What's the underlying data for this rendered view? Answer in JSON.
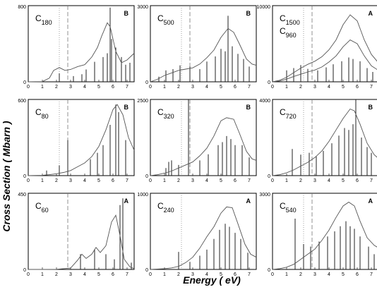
{
  "figure": {
    "ylabel": "Cross Section ( Mbarn )",
    "xlabel": "Energy ( eV)"
  },
  "chart_data": [
    {
      "type": "line",
      "molecule": "C",
      "subscript": "180",
      "subscript2": "",
      "subscript_label2": "",
      "tag": "B",
      "xlim": [
        0,
        7.5
      ],
      "ylim": [
        0,
        800
      ],
      "ytick_labels": [
        "0",
        "800"
      ],
      "xtick_labels": [
        "0",
        "1",
        "2",
        "3",
        "4",
        "5",
        "6",
        "7"
      ],
      "dotted_x": 2.2,
      "dashed_x": 2.8,
      "envelope": [
        [
          0,
          0
        ],
        [
          1,
          2
        ],
        [
          1.5,
          40
        ],
        [
          1.8,
          120
        ],
        [
          2.2,
          150
        ],
        [
          2.6,
          120
        ],
        [
          3.0,
          130
        ],
        [
          3.5,
          160
        ],
        [
          4.0,
          180
        ],
        [
          4.5,
          260
        ],
        [
          4.9,
          360
        ],
        [
          5.2,
          480
        ],
        [
          5.6,
          620
        ],
        [
          5.8,
          580
        ],
        [
          6.2,
          320
        ],
        [
          6.6,
          200
        ],
        [
          7.0,
          230
        ],
        [
          7.5,
          300
        ]
      ],
      "peaks": [
        [
          2.2,
          90
        ],
        [
          3.2,
          60
        ],
        [
          3.8,
          80
        ],
        [
          4.1,
          130
        ],
        [
          4.7,
          210
        ],
        [
          5.3,
          260
        ],
        [
          5.6,
          300
        ],
        [
          5.8,
          780
        ],
        [
          5.9,
          450
        ],
        [
          6.2,
          360
        ],
        [
          6.6,
          260
        ],
        [
          6.9,
          180
        ],
        [
          7.2,
          200
        ]
      ]
    },
    {
      "type": "line",
      "molecule": "C",
      "subscript": "500",
      "subscript2": "",
      "subscript_label2": "",
      "tag": "B",
      "xlim": [
        0,
        7.5
      ],
      "ylim": [
        0,
        3000
      ],
      "ytick_labels": [
        "0",
        "3000"
      ],
      "xtick_labels": [
        "0",
        "1",
        "2",
        "3",
        "4",
        "5",
        "6",
        "7"
      ],
      "dotted_x": 2.2,
      "dashed_x": 2.8,
      "envelope": [
        [
          0,
          0
        ],
        [
          0.5,
          100
        ],
        [
          1,
          250
        ],
        [
          1.5,
          350
        ],
        [
          2,
          450
        ],
        [
          2.5,
          500
        ],
        [
          3,
          550
        ],
        [
          3.5,
          700
        ],
        [
          4,
          950
        ],
        [
          4.5,
          1250
        ],
        [
          5,
          1750
        ],
        [
          5.5,
          2100
        ],
        [
          5.9,
          1950
        ],
        [
          6.3,
          1500
        ],
        [
          6.8,
          900
        ],
        [
          7.2,
          700
        ],
        [
          7.5,
          650
        ]
      ],
      "peaks": [
        [
          0.6,
          200
        ],
        [
          1.1,
          450
        ],
        [
          1.6,
          500
        ],
        [
          2.1,
          650
        ],
        [
          2.8,
          600
        ],
        [
          3.5,
          500
        ],
        [
          4.0,
          800
        ],
        [
          4.6,
          1000
        ],
        [
          5.0,
          1300
        ],
        [
          5.3,
          1200
        ],
        [
          5.5,
          2600
        ],
        [
          5.8,
          1400
        ],
        [
          6.2,
          1100
        ],
        [
          6.6,
          900
        ],
        [
          7.0,
          600
        ]
      ]
    },
    {
      "type": "line",
      "molecule": "C",
      "subscript": "1500",
      "subscript2": "960",
      "subscript_label2": "C",
      "tag": "A",
      "xlim": [
        0,
        7.5
      ],
      "ylim": [
        0,
        10000
      ],
      "ytick_labels": [
        "0",
        "10000"
      ],
      "xtick_labels": [
        "0",
        "1",
        "2",
        "3",
        "4",
        "5",
        "6",
        "7"
      ],
      "dotted_x": 2.2,
      "dashed_x": 2.8,
      "envelope": [
        [
          0,
          0
        ],
        [
          0.5,
          200
        ],
        [
          1,
          600
        ],
        [
          1.5,
          1200
        ],
        [
          2,
          1800
        ],
        [
          2.5,
          2300
        ],
        [
          3,
          2700
        ],
        [
          3.5,
          3300
        ],
        [
          4,
          4200
        ],
        [
          4.5,
          5500
        ],
        [
          5,
          7500
        ],
        [
          5.5,
          8800
        ],
        [
          6,
          8000
        ],
        [
          6.5,
          5500
        ],
        [
          7,
          3600
        ],
        [
          7.5,
          2500
        ]
      ],
      "envelope2": [
        [
          0,
          0
        ],
        [
          0.5,
          100
        ],
        [
          1,
          350
        ],
        [
          1.5,
          700
        ],
        [
          2,
          1000
        ],
        [
          2.5,
          1300
        ],
        [
          3,
          1550
        ],
        [
          3.5,
          1950
        ],
        [
          4,
          2600
        ],
        [
          4.5,
          3400
        ],
        [
          5,
          4600
        ],
        [
          5.5,
          5500
        ],
        [
          6,
          5000
        ],
        [
          6.5,
          3400
        ],
        [
          7,
          2100
        ],
        [
          7.5,
          1500
        ]
      ],
      "peaks": [
        [
          1.0,
          1500
        ],
        [
          1.5,
          1800
        ],
        [
          2.0,
          2200
        ],
        [
          2.5,
          1700
        ],
        [
          3.2,
          1500
        ],
        [
          3.8,
          1900
        ],
        [
          4.3,
          2300
        ],
        [
          4.9,
          2700
        ],
        [
          5.4,
          3200
        ],
        [
          5.7,
          3000
        ],
        [
          6.2,
          2700
        ],
        [
          6.7,
          1800
        ],
        [
          7.1,
          1300
        ]
      ]
    },
    {
      "type": "line",
      "molecule": "C",
      "subscript": "80",
      "subscript2": "",
      "subscript_label2": "",
      "tag": "B",
      "xlim": [
        0,
        7.5
      ],
      "ylim": [
        0,
        600
      ],
      "ytick_labels": [
        "0",
        "600"
      ],
      "xtick_labels": [
        "0",
        "1",
        "2",
        "3",
        "4",
        "5",
        "6",
        "7"
      ],
      "dotted_x": 2.2,
      "dashed_x": 2.8,
      "envelope": [
        [
          0,
          0
        ],
        [
          1,
          2
        ],
        [
          1.5,
          8
        ],
        [
          2,
          15
        ],
        [
          2.5,
          25
        ],
        [
          3,
          40
        ],
        [
          3.5,
          70
        ],
        [
          4,
          100
        ],
        [
          4.5,
          150
        ],
        [
          5,
          230
        ],
        [
          5.5,
          360
        ],
        [
          6,
          520
        ],
        [
          6.3,
          560
        ],
        [
          6.7,
          480
        ],
        [
          7.1,
          300
        ],
        [
          7.5,
          200
        ]
      ],
      "peaks": [
        [
          1.3,
          40
        ],
        [
          2.2,
          80
        ],
        [
          2.8,
          280
        ],
        [
          4.4,
          130
        ],
        [
          4.9,
          180
        ],
        [
          5.3,
          240
        ],
        [
          5.8,
          400
        ],
        [
          6.2,
          560
        ],
        [
          6.4,
          500
        ],
        [
          6.9,
          280
        ]
      ]
    },
    {
      "type": "line",
      "molecule": "C",
      "subscript": "320",
      "subscript2": "",
      "subscript_label2": "",
      "tag": "B",
      "xlim": [
        0,
        7.5
      ],
      "ylim": [
        0,
        2500
      ],
      "ytick_labels": [
        "0",
        "2500"
      ],
      "xtick_labels": [
        "0",
        "1",
        "2",
        "3",
        "4",
        "5",
        "6",
        "7"
      ],
      "dotted_x": 2.2,
      "dashed_x": 2.8,
      "envelope": [
        [
          0,
          0
        ],
        [
          0.5,
          30
        ],
        [
          1,
          80
        ],
        [
          1.5,
          150
        ],
        [
          2,
          250
        ],
        [
          2.5,
          350
        ],
        [
          3,
          450
        ],
        [
          3.5,
          650
        ],
        [
          4,
          900
        ],
        [
          4.5,
          1300
        ],
        [
          5,
          1800
        ],
        [
          5.4,
          1900
        ],
        [
          5.9,
          1850
        ],
        [
          6.3,
          1400
        ],
        [
          6.8,
          800
        ],
        [
          7.2,
          550
        ],
        [
          7.5,
          500
        ]
      ],
      "peaks": [
        [
          1.1,
          250
        ],
        [
          1.3,
          450
        ],
        [
          1.5,
          500
        ],
        [
          2.0,
          350
        ],
        [
          2.7,
          2500
        ],
        [
          3.5,
          500
        ],
        [
          4.1,
          700
        ],
        [
          4.8,
          1000
        ],
        [
          5.1,
          1100
        ],
        [
          5.4,
          1300
        ],
        [
          5.7,
          1200
        ],
        [
          6.0,
          1000
        ],
        [
          6.5,
          1000
        ],
        [
          7.0,
          600
        ]
      ]
    },
    {
      "type": "line",
      "molecule": "C",
      "subscript": "720",
      "subscript2": "",
      "subscript_label2": "",
      "tag": "B",
      "xlim": [
        0,
        7.5
      ],
      "ylim": [
        0,
        4000
      ],
      "ytick_labels": [
        "0",
        "4000"
      ],
      "xtick_labels": [
        "0",
        "1",
        "2",
        "3",
        "4",
        "5",
        "6",
        "7"
      ],
      "dotted_x": 2.2,
      "dashed_x": 2.8,
      "envelope": [
        [
          0,
          0
        ],
        [
          0.5,
          50
        ],
        [
          1,
          150
        ],
        [
          1.5,
          300
        ],
        [
          2,
          500
        ],
        [
          2.5,
          700
        ],
        [
          3,
          950
        ],
        [
          3.5,
          1300
        ],
        [
          4,
          1800
        ],
        [
          4.5,
          2400
        ],
        [
          5,
          3000
        ],
        [
          5.5,
          3500
        ],
        [
          5.8,
          3400
        ],
        [
          6.2,
          2700
        ],
        [
          6.7,
          1700
        ],
        [
          7.2,
          1100
        ],
        [
          7.5,
          900
        ]
      ],
      "peaks": [
        [
          1.4,
          1400
        ],
        [
          2.0,
          1100
        ],
        [
          2.6,
          1200
        ],
        [
          3.1,
          1000
        ],
        [
          3.6,
          1300
        ],
        [
          4.2,
          1700
        ],
        [
          4.7,
          2100
        ],
        [
          5.1,
          2500
        ],
        [
          5.4,
          2400
        ],
        [
          5.7,
          2700
        ],
        [
          5.9,
          4000
        ],
        [
          6.3,
          2000
        ],
        [
          6.7,
          1500
        ],
        [
          7.0,
          1200
        ]
      ]
    },
    {
      "type": "line",
      "molecule": "C",
      "subscript": "60",
      "subscript2": "",
      "subscript_label2": "",
      "tag": "A",
      "xlim": [
        0,
        7.5
      ],
      "ylim": [
        0,
        450
      ],
      "ytick_labels": [
        "0",
        "450"
      ],
      "xtick_labels": [
        "0",
        "1",
        "2",
        "3",
        "4",
        "5",
        "6",
        "7"
      ],
      "dotted_x": null,
      "dashed_x": 2.8,
      "envelope": [
        [
          0,
          0
        ],
        [
          1,
          0
        ],
        [
          2,
          1
        ],
        [
          3,
          8
        ],
        [
          3.5,
          55
        ],
        [
          3.8,
          90
        ],
        [
          4.1,
          65
        ],
        [
          4.5,
          90
        ],
        [
          4.8,
          130
        ],
        [
          5.1,
          100
        ],
        [
          5.5,
          140
        ],
        [
          5.9,
          280
        ],
        [
          6.2,
          320
        ],
        [
          6.5,
          200
        ],
        [
          6.8,
          60
        ],
        [
          7.2,
          15
        ],
        [
          7.5,
          5
        ]
      ],
      "peaks": [
        [
          3.7,
          90
        ],
        [
          4.7,
          120
        ],
        [
          5.5,
          90
        ],
        [
          6.1,
          60
        ],
        [
          6.5,
          380
        ],
        [
          6.7,
          420
        ],
        [
          7.3,
          40
        ]
      ]
    },
    {
      "type": "line",
      "molecule": "C",
      "subscript": "240",
      "subscript2": "",
      "subscript_label2": "",
      "tag": "A",
      "xlim": [
        0,
        7.5
      ],
      "ylim": [
        0,
        1000
      ],
      "ytick_labels": [
        "0",
        "1000"
      ],
      "xtick_labels": [
        "0",
        "1",
        "2",
        "3",
        "4",
        "5",
        "6",
        "7"
      ],
      "dotted_x": 2.2,
      "dashed_x": null,
      "envelope": [
        [
          0,
          0
        ],
        [
          0.5,
          5
        ],
        [
          1,
          10
        ],
        [
          1.5,
          20
        ],
        [
          2,
          40
        ],
        [
          2.5,
          90
        ],
        [
          3,
          160
        ],
        [
          3.5,
          280
        ],
        [
          4,
          430
        ],
        [
          4.5,
          560
        ],
        [
          5,
          740
        ],
        [
          5.4,
          820
        ],
        [
          5.8,
          810
        ],
        [
          6.2,
          600
        ],
        [
          6.7,
          330
        ],
        [
          7.1,
          200
        ],
        [
          7.5,
          160
        ]
      ],
      "peaks": [
        [
          2.0,
          230
        ],
        [
          2.8,
          100
        ],
        [
          3.5,
          180
        ],
        [
          4.0,
          260
        ],
        [
          4.5,
          400
        ],
        [
          4.9,
          520
        ],
        [
          5.3,
          600
        ],
        [
          5.6,
          560
        ],
        [
          6.0,
          480
        ],
        [
          6.4,
          400
        ],
        [
          6.9,
          220
        ]
      ]
    },
    {
      "type": "line",
      "molecule": "C",
      "subscript": "540",
      "subscript2": "",
      "subscript_label2": "",
      "tag": "A",
      "xlim": [
        0,
        7.5
      ],
      "ylim": [
        0,
        3000
      ],
      "ytick_labels": [
        "0",
        "3000"
      ],
      "xtick_labels": [
        "0",
        "1",
        "2",
        "3",
        "4",
        "5",
        "6",
        "7"
      ],
      "dotted_x": 2.2,
      "dashed_x": 2.8,
      "envelope": [
        [
          0,
          0
        ],
        [
          0.5,
          30
        ],
        [
          1,
          90
        ],
        [
          1.5,
          200
        ],
        [
          2,
          400
        ],
        [
          2.5,
          600
        ],
        [
          3,
          800
        ],
        [
          3.5,
          1150
        ],
        [
          4,
          1550
        ],
        [
          4.5,
          2050
        ],
        [
          5,
          2500
        ],
        [
          5.4,
          2650
        ],
        [
          5.8,
          2500
        ],
        [
          6.2,
          1900
        ],
        [
          6.7,
          1250
        ],
        [
          7.2,
          950
        ],
        [
          7.5,
          850
        ]
      ],
      "peaks": [
        [
          1.6,
          2000
        ],
        [
          2.2,
          1000
        ],
        [
          2.7,
          900
        ],
        [
          3.3,
          1100
        ],
        [
          3.9,
          1300
        ],
        [
          4.4,
          1500
        ],
        [
          4.8,
          1700
        ],
        [
          5.2,
          1900
        ],
        [
          5.5,
          1700
        ],
        [
          5.8,
          1600
        ],
        [
          6.2,
          1300
        ],
        [
          6.8,
          900
        ],
        [
          7.2,
          600
        ]
      ]
    }
  ]
}
